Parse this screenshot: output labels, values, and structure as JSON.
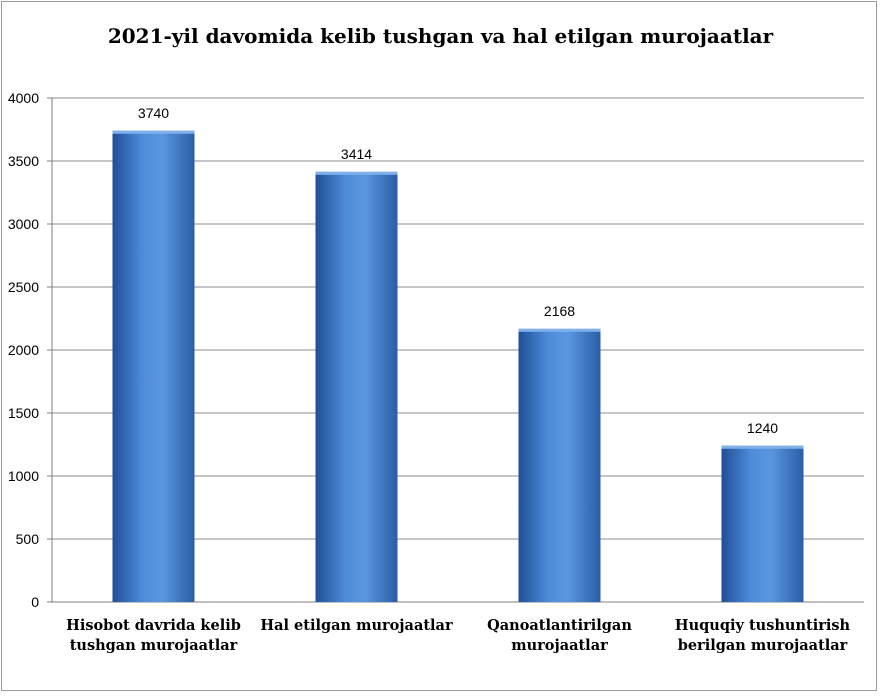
{
  "chart_data": {
    "type": "bar",
    "title": "2021-yil davomida kelib tushgan va hal etilgan murojaatlar",
    "categories": [
      "Hisobot davrida kelib tushgan murojaatlar",
      "Hal etilgan murojaatlar",
      "Qanoatlantirilgan murojaatlar",
      "Huquqiy tushuntirish berilgan murojaatlar"
    ],
    "values": [
      3740,
      3414,
      2168,
      1240
    ],
    "ylim": [
      0,
      4000
    ],
    "yticks": [
      "0",
      "500",
      "1000",
      "1500",
      "2000",
      "2500",
      "3000",
      "3500",
      "4000"
    ],
    "grid": true,
    "legend": "none",
    "bar_color": "#3c78c8"
  }
}
